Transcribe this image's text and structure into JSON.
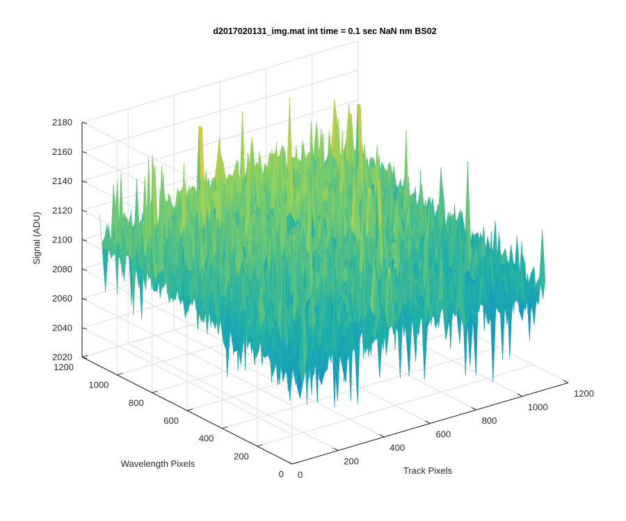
{
  "chart_data": {
    "type": "surface",
    "title": "d2017020131_img.mat int time = 0.1 sec  NaN nm BS02",
    "xlabel": "Track Pixels",
    "ylabel": "Wavelength Pixels",
    "zlabel": "Signal (ADU)",
    "xlim": [
      0,
      1200
    ],
    "ylim": [
      0,
      1200
    ],
    "zlim": [
      2020,
      2180
    ],
    "xticks": [
      0,
      200,
      400,
      600,
      800,
      1000,
      1200
    ],
    "yticks": [
      0,
      200,
      400,
      600,
      800,
      1000,
      1200
    ],
    "zticks": [
      2020,
      2040,
      2060,
      2080,
      2100,
      2120,
      2140,
      2160,
      2180
    ],
    "xtick_labels": [
      "0",
      "200",
      "400",
      "600",
      "800",
      "1000",
      "1200"
    ],
    "ytick_labels": [
      "0",
      "200",
      "400",
      "600",
      "800",
      "1000",
      "1200"
    ],
    "ztick_labels": [
      "2020",
      "2040",
      "2060",
      "2080",
      "2100",
      "2120",
      "2140",
      "2160",
      "2180"
    ],
    "grid": true,
    "colormap": "parula",
    "colors": {
      "low": "#0f7fdc",
      "mid": "#1fb0a8",
      "high": "#f2c62e",
      "peak": "#8fd25f"
    },
    "surface": {
      "x_range": [
        0,
        1100
      ],
      "y_range": [
        0,
        1100
      ],
      "z_mean": 2100,
      "z_mean_range": [
        2085,
        2122
      ],
      "z_noise_range": [
        2025,
        2172
      ]
    }
  }
}
